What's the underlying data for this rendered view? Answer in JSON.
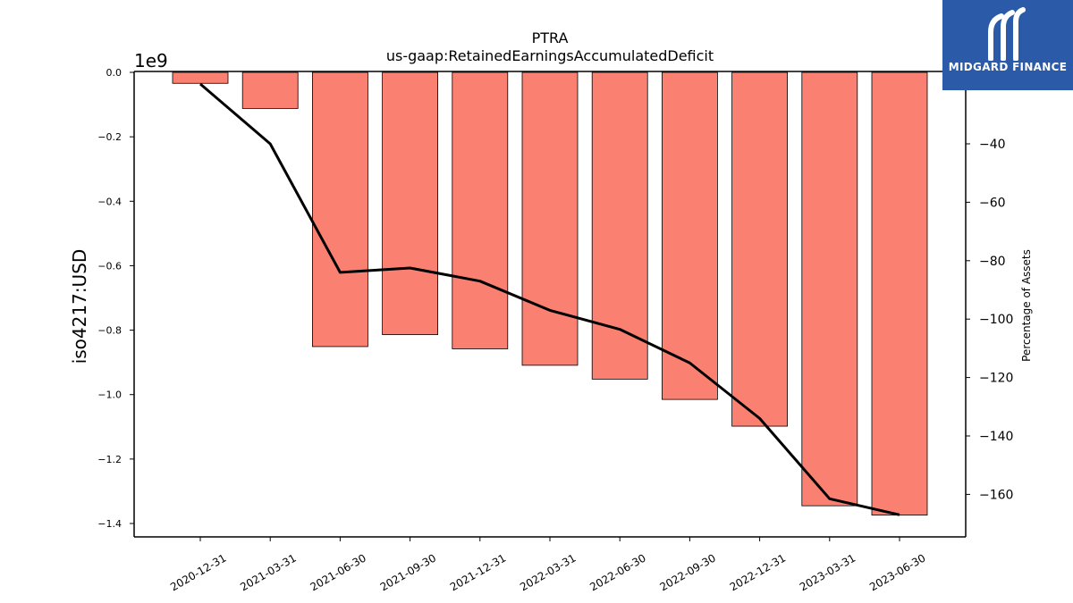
{
  "chart_data": {
    "type": "bar",
    "title": "PTRA",
    "subtitle": "us-gaap:RetainedEarningsAccumulatedDeficit",
    "ylabel": "iso4217:USD",
    "y_offset_label": "1e9",
    "y2label": "Percentage of Assets",
    "categories": [
      "2020-12-31",
      "2021-03-31",
      "2021-06-30",
      "2021-09-30",
      "2021-12-31",
      "2022-03-31",
      "2022-06-30",
      "2022-09-30",
      "2022-12-31",
      "2023-03-31",
      "2023-06-30"
    ],
    "values": [
      -0.034,
      -0.112,
      -0.851,
      -0.814,
      -0.858,
      -0.909,
      -0.952,
      -1.015,
      -1.098,
      -1.345,
      -1.374
    ],
    "values_unit_multiplier": 1000000000,
    "line_series": {
      "axis": "right",
      "values": [
        -19.5,
        -40,
        -84,
        -82.5,
        -87,
        -97,
        -103.5,
        -115,
        -134,
        -161.5,
        -167
      ]
    },
    "ylim": [
      -1.44,
      0.0
    ],
    "y2lim": [
      -173.8,
      -15.5
    ],
    "yticks": [
      "0.0",
      "−0.2",
      "−0.4",
      "−0.6",
      "−0.8",
      "−1.0",
      "−1.2",
      "−1.4"
    ],
    "yticks_values": [
      0,
      -0.2,
      -0.4,
      -0.6,
      -0.8,
      -1.0,
      -1.2,
      -1.4
    ],
    "y2ticks": [
      "−40",
      "−60",
      "−80",
      "−100",
      "−120",
      "−140",
      "−160"
    ],
    "y2ticks_values": [
      -40,
      -60,
      -80,
      -100,
      -120,
      -140,
      -160
    ],
    "bar_color": "#fa8072",
    "line_color": "#000000",
    "grid": false
  },
  "logo": {
    "text": "MIDGARD FINANCE",
    "background": "#2a5aa8"
  }
}
